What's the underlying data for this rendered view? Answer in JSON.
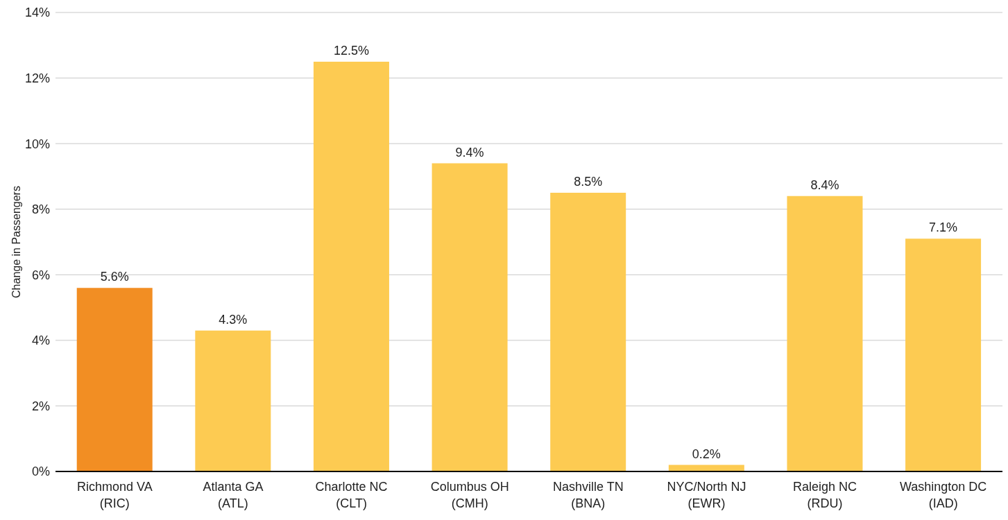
{
  "chart_data": {
    "type": "bar",
    "ylabel": "Change in Passengers",
    "categories": [
      "Richmond VA\n(RIC)",
      "Atlanta GA\n(ATL)",
      "Charlotte NC\n(CLT)",
      "Columbus OH\n(CMH)",
      "Nashville TN\n(BNA)",
      "NYC/North NJ\n(EWR)",
      "Raleigh NC\n(RDU)",
      "Washington DC\n(IAD)"
    ],
    "values": [
      5.6,
      4.3,
      12.5,
      9.4,
      8.5,
      0.2,
      8.4,
      7.1
    ],
    "colors": [
      "#f28e23",
      "#fdcb52",
      "#fdcb52",
      "#fdcb52",
      "#fdcb52",
      "#fdcb52",
      "#fdcb52",
      "#fdcb52"
    ],
    "value_labels": [
      "5.6%",
      "4.3%",
      "12.5%",
      "9.4%",
      "8.5%",
      "0.2%",
      "8.4%",
      "7.1%"
    ],
    "ylim": [
      0,
      14
    ],
    "yticks": [
      {
        "value": 0,
        "label": "0%"
      },
      {
        "value": 2,
        "label": "2%"
      },
      {
        "value": 4,
        "label": "4%"
      },
      {
        "value": 6,
        "label": "6%"
      },
      {
        "value": 8,
        "label": "8%"
      },
      {
        "value": 10,
        "label": "10%"
      },
      {
        "value": 12,
        "label": "12%"
      },
      {
        "value": 14,
        "label": "14%"
      }
    ],
    "grid": "y"
  }
}
